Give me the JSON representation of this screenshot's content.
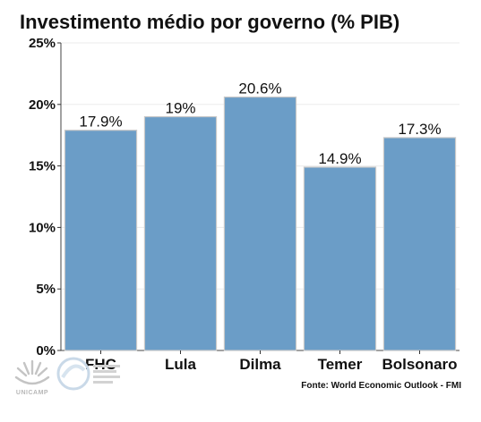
{
  "chart_data": {
    "type": "bar",
    "title": "Investimento médio por governo (% PIB)",
    "categories": [
      "FHC",
      "Lula",
      "Dilma",
      "Temer",
      "Bolsonaro"
    ],
    "values": [
      17.9,
      19,
      20.6,
      14.9,
      17.3
    ],
    "data_labels": [
      "17.9%",
      "19%",
      "20.6%",
      "14.9%",
      "17.3%"
    ],
    "ylim": [
      0,
      25
    ],
    "yticks": [
      0,
      5,
      10,
      15,
      20,
      25
    ],
    "ytick_labels": [
      "0%",
      "5%",
      "10%",
      "15%",
      "20%",
      "25%"
    ],
    "xlabel": "",
    "ylabel": "",
    "grid": true,
    "bar_color": "#6b9dc7",
    "bar_edge_color": "#c8c8c8"
  },
  "source": "Fonte: World Economic Outlook - FMI",
  "logos": {
    "unicamp_caption": "UNICAMP"
  }
}
